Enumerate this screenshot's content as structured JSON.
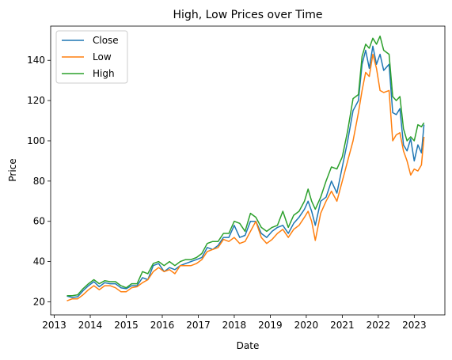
{
  "chart_data": {
    "type": "line",
    "title": "High, Low Prices over Time",
    "xlabel": "Date",
    "ylabel": "Price",
    "xlim": [
      2012.9,
      2023.85
    ],
    "ylim": [
      13.5,
      157
    ],
    "x_ticks": [
      {
        "value": 2013,
        "label": "2013"
      },
      {
        "value": 2014,
        "label": "2014"
      },
      {
        "value": 2015,
        "label": "2015"
      },
      {
        "value": 2016,
        "label": "2016"
      },
      {
        "value": 2017,
        "label": "2017"
      },
      {
        "value": 2018,
        "label": "2018"
      },
      {
        "value": 2019,
        "label": "2019"
      },
      {
        "value": 2020,
        "label": "2020"
      },
      {
        "value": 2021,
        "label": "2021"
      },
      {
        "value": 2022,
        "label": "2022"
      },
      {
        "value": 2023,
        "label": "2023"
      }
    ],
    "y_ticks": [
      {
        "value": 20,
        "label": "20"
      },
      {
        "value": 40,
        "label": "40"
      },
      {
        "value": 60,
        "label": "60"
      },
      {
        "value": 80,
        "label": "80"
      },
      {
        "value": 100,
        "label": "100"
      },
      {
        "value": 120,
        "label": "120"
      },
      {
        "value": 140,
        "label": "140"
      }
    ],
    "grid": false,
    "legend_position": "top-left",
    "x": [
      2013.35,
      2013.5,
      2013.65,
      2013.8,
      2013.95,
      2014.1,
      2014.25,
      2014.4,
      2014.55,
      2014.7,
      2014.85,
      2015.0,
      2015.15,
      2015.3,
      2015.45,
      2015.6,
      2015.75,
      2015.9,
      2016.05,
      2016.2,
      2016.35,
      2016.5,
      2016.65,
      2016.8,
      2016.95,
      2017.1,
      2017.25,
      2017.4,
      2017.55,
      2017.7,
      2017.85,
      2018.0,
      2018.15,
      2018.3,
      2018.45,
      2018.6,
      2018.75,
      2018.9,
      2019.05,
      2019.2,
      2019.35,
      2019.5,
      2019.65,
      2019.8,
      2019.95,
      2020.05,
      2020.15,
      2020.25,
      2020.4,
      2020.55,
      2020.7,
      2020.85,
      2021.0,
      2021.15,
      2021.3,
      2021.45,
      2021.55,
      2021.65,
      2021.75,
      2021.85,
      2021.95,
      2022.05,
      2022.15,
      2022.3,
      2022.4,
      2022.5,
      2022.6,
      2022.7,
      2022.8,
      2022.9,
      2023.0,
      2023.1,
      2023.2,
      2023.27
    ],
    "series": [
      {
        "name": "Close",
        "color": "#1f77b4",
        "values": [
          22.8,
          22.2,
          22.5,
          25.5,
          28.0,
          30.0,
          27.5,
          29.5,
          29.0,
          29.0,
          27.0,
          26.5,
          28.0,
          28.0,
          32.0,
          31.0,
          38.0,
          39.0,
          35.0,
          37.0,
          36.0,
          38.0,
          39.0,
          40.0,
          41.0,
          42.0,
          47.0,
          46.0,
          48.0,
          52.0,
          52.0,
          58.0,
          52.0,
          53.0,
          60.0,
          60.0,
          54.0,
          52.0,
          55.0,
          57.0,
          58.0,
          54.0,
          59.0,
          62.0,
          66.0,
          70.0,
          65.0,
          58.0,
          70.0,
          72.0,
          80.0,
          74.0,
          87.0,
          100.0,
          115.0,
          120.0,
          138.0,
          145.0,
          136.0,
          147.0,
          138.0,
          143.0,
          135.0,
          138.0,
          114.0,
          113.0,
          116.0,
          98.0,
          95.0,
          101.0,
          90.0,
          98.0,
          94.0,
          108.0
        ]
      },
      {
        "name": "Low",
        "color": "#ff7f0e",
        "values": [
          20.5,
          21.5,
          21.5,
          23.5,
          26.0,
          28.0,
          26.0,
          28.0,
          28.0,
          27.0,
          25.0,
          25.0,
          27.0,
          27.5,
          29.5,
          31.0,
          35.0,
          37.0,
          35.0,
          36.0,
          34.0,
          38.0,
          38.0,
          38.0,
          39.0,
          41.0,
          45.0,
          46.0,
          47.0,
          51.0,
          50.0,
          52.0,
          49.0,
          50.0,
          55.0,
          60.0,
          52.0,
          49.0,
          51.0,
          54.0,
          56.0,
          52.0,
          56.0,
          58.0,
          62.0,
          65.0,
          60.0,
          50.5,
          64.0,
          70.0,
          75.0,
          70.0,
          80.0,
          90.0,
          100.0,
          114.0,
          125.0,
          134.0,
          132.0,
          143.0,
          136.0,
          125.0,
          124.0,
          125.0,
          100.0,
          103.0,
          104.0,
          95.0,
          90.0,
          83.0,
          86.0,
          85.0,
          88.0,
          102.0
        ]
      },
      {
        "name": "High",
        "color": "#2ca02c",
        "values": [
          23.0,
          23.0,
          23.5,
          26.5,
          29.0,
          31.0,
          29.0,
          30.5,
          30.0,
          30.0,
          28.0,
          27.0,
          29.0,
          29.0,
          35.0,
          34.0,
          39.0,
          40.0,
          38.0,
          40.0,
          38.0,
          40.0,
          41.0,
          41.0,
          42.0,
          44.0,
          49.0,
          50.0,
          50.0,
          54.0,
          54.0,
          60.0,
          59.0,
          55.0,
          64.0,
          62.0,
          57.0,
          55.0,
          57.0,
          58.0,
          65.0,
          57.0,
          63.0,
          65.0,
          70.0,
          76.0,
          70.0,
          66.0,
          72.0,
          80.0,
          87.0,
          86.0,
          92.0,
          105.0,
          121.0,
          123.0,
          142.0,
          148.0,
          146.0,
          151.0,
          148.0,
          152.0,
          145.0,
          143.0,
          122.0,
          120.0,
          122.0,
          106.0,
          100.0,
          102.0,
          100.0,
          108.0,
          107.0,
          109.0
        ]
      }
    ]
  }
}
